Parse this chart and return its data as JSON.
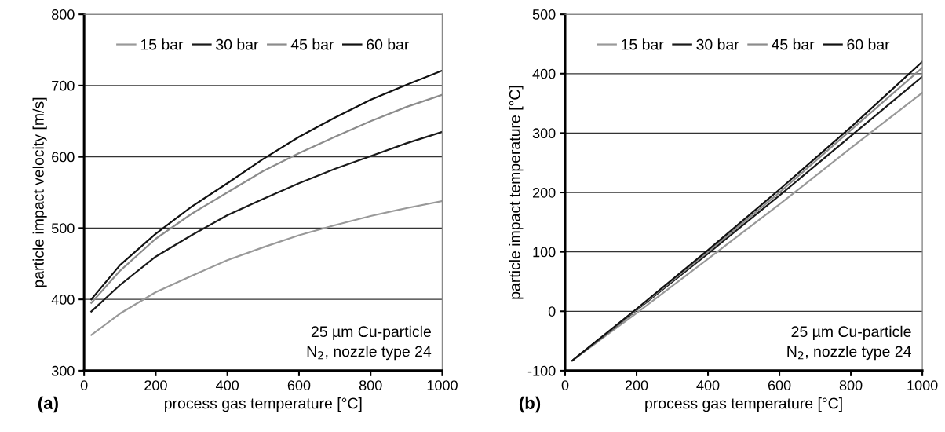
{
  "chart_data": [
    {
      "type": "line",
      "xlabel": "process gas temperature [°C]",
      "ylabel": "particle impact velocity [m/s]",
      "x": [
        20,
        100,
        200,
        300,
        400,
        500,
        600,
        700,
        800,
        900,
        1000
      ],
      "series": [
        {
          "name": "15 bar",
          "color": "#999999",
          "values": [
            350,
            380,
            410,
            433,
            455,
            473,
            490,
            504,
            517,
            528,
            538
          ]
        },
        {
          "name": "30 bar",
          "color": "#1a1a1a",
          "values": [
            383,
            420,
            460,
            490,
            518,
            541,
            563,
            583,
            601,
            619,
            635
          ]
        },
        {
          "name": "45 bar",
          "color": "#8c8c8c",
          "values": [
            395,
            440,
            485,
            520,
            550,
            580,
            605,
            628,
            650,
            670,
            687
          ]
        },
        {
          "name": "60 bar",
          "color": "#111111",
          "values": [
            400,
            448,
            492,
            530,
            563,
            597,
            628,
            655,
            680,
            701,
            721
          ]
        }
      ],
      "xlim": [
        0,
        1000
      ],
      "xticks": [
        0,
        200,
        400,
        600,
        800,
        1000
      ],
      "ylim": [
        300,
        800
      ],
      "yticks": [
        300,
        400,
        500,
        600,
        700,
        800
      ],
      "grid": "y",
      "legend": "top",
      "marker": "none",
      "line_style": "solid",
      "annotations": [
        "25 µm Cu-particle\nN$_{2}$, nozzle type 24",
        "(a)"
      ]
    },
    {
      "type": "line",
      "xlabel": "process gas temperature [°C]",
      "ylabel": "particle impact temperature [°C]",
      "x": [
        20,
        200,
        400,
        600,
        800,
        1000
      ],
      "series": [
        {
          "name": "15 bar",
          "color": "#999999",
          "values": [
            -83,
            -3,
            88,
            180,
            275,
            368
          ]
        },
        {
          "name": "30 bar",
          "color": "#1a1a1a",
          "values": [
            -83,
            2,
            97,
            195,
            295,
            395
          ]
        },
        {
          "name": "45 bar",
          "color": "#8c8c8c",
          "values": [
            -83,
            3,
            100,
            200,
            305,
            410
          ]
        },
        {
          "name": "60 bar",
          "color": "#111111",
          "values": [
            -83,
            4,
            103,
            205,
            310,
            420
          ]
        }
      ],
      "xlim": [
        0,
        1000
      ],
      "xticks": [
        0,
        200,
        400,
        600,
        800,
        1000
      ],
      "ylim": [
        -100,
        500
      ],
      "yticks": [
        -100,
        0,
        100,
        200,
        300,
        400,
        500
      ],
      "grid": "y",
      "legend": "top",
      "marker": "none",
      "line_style": "solid",
      "annotations": [
        "25 µm Cu-particle\nN$_{2}$, nozzle type 24",
        "(b)"
      ]
    }
  ]
}
